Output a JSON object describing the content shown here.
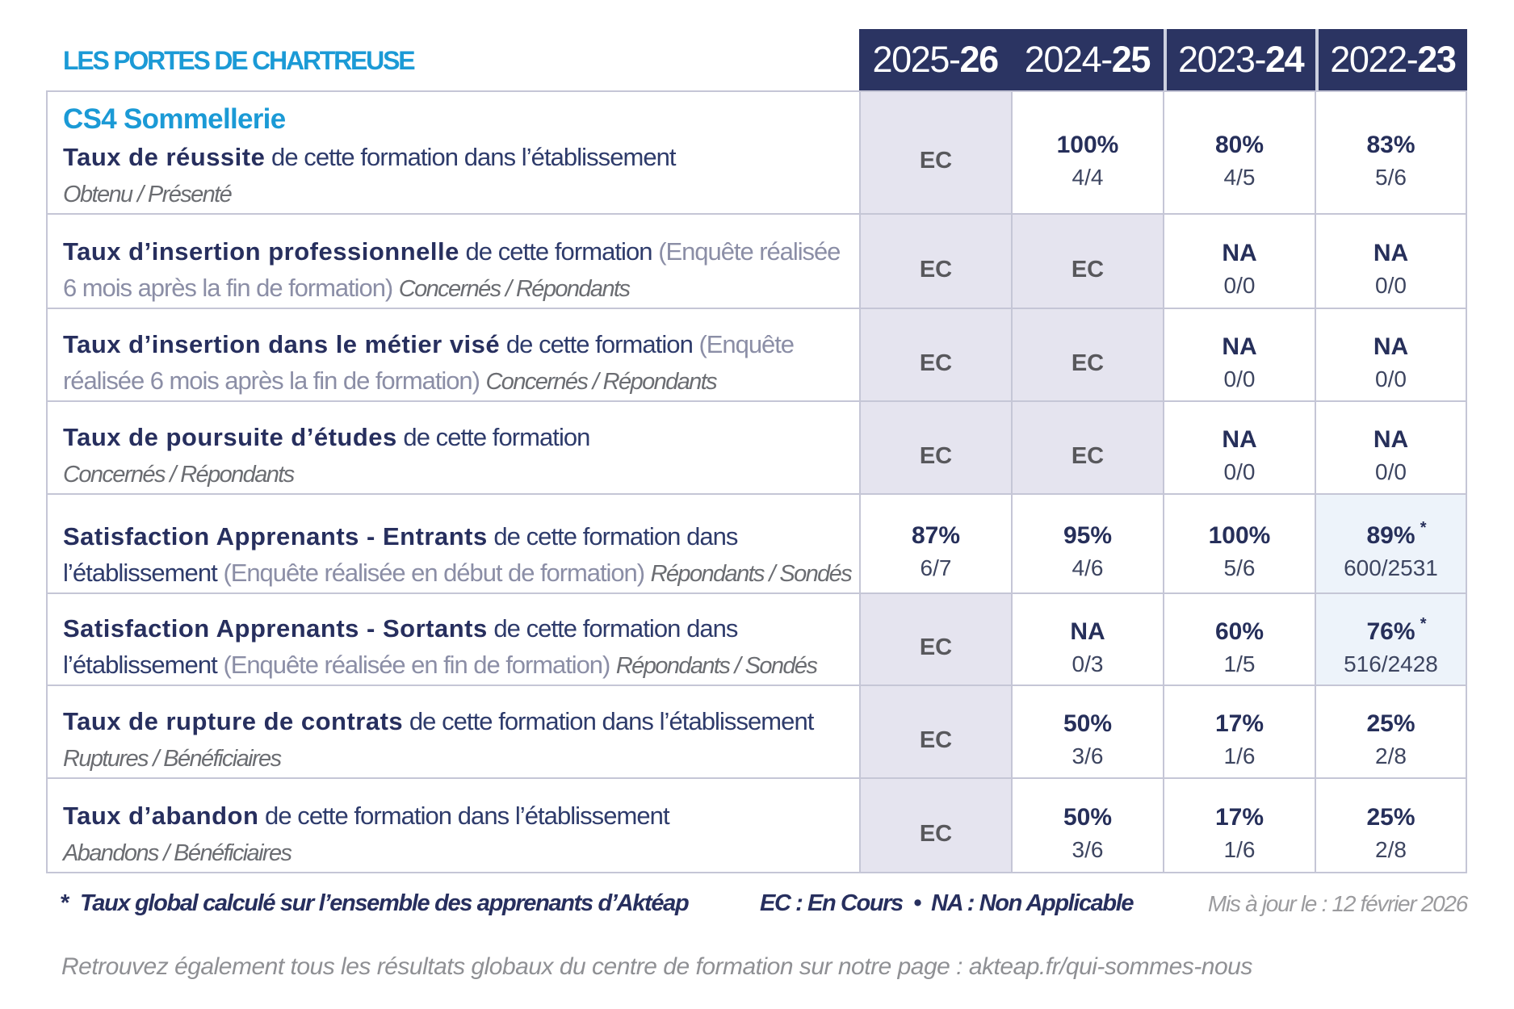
{
  "title": "LES PORTES DE CHARTREUSE",
  "colors": {
    "accent_blue": "#1b9ad6",
    "header_navy": "#2b3462",
    "text_navy": "#272f5e",
    "cell_lavender": "#e5e4ef",
    "cell_light_blue": "#edf3fa",
    "grid_border": "#c5c6d6"
  },
  "header": {
    "cols": [
      {
        "id": "2025-26",
        "pre": "2025-",
        "bold": "26"
      },
      {
        "id": "2024-25",
        "pre": "2024-",
        "bold": "25"
      },
      {
        "id": "2023-24",
        "pre": "2023-",
        "bold": "24"
      },
      {
        "id": "2022-23",
        "pre": "2022-",
        "bold": "23"
      }
    ]
  },
  "table": {
    "rows": [
      {
        "id": "taux-de-reussite",
        "heading": "CS4 Sommellerie",
        "lines": [
          [
            {
              "s": "b",
              "t": "Taux de réussite"
            },
            {
              "s": "r",
              "t": " de cette formation dans l’établissement"
            }
          ],
          [
            {
              "s": "i",
              "t": "Obtenu / Présenté"
            }
          ]
        ],
        "cells": [
          {
            "bg": "lavender",
            "value": "EC"
          },
          {
            "bg": "white",
            "value": "100%",
            "sub": "4/4"
          },
          {
            "bg": "white",
            "value": "80%",
            "sub": "4/5"
          },
          {
            "bg": "white",
            "value": "83%",
            "sub": "5/6"
          }
        ]
      },
      {
        "id": "taux-insertion-professionnelle",
        "lines": [
          [
            {
              "s": "b",
              "t": "Taux d’insertion professionnelle"
            },
            {
              "s": "r",
              "t": " de cette formation "
            },
            {
              "s": "p",
              "t": "(Enquête réalisée"
            }
          ],
          [
            {
              "s": "p",
              "t": "6 mois après la fin de formation) "
            },
            {
              "s": "i",
              "t": "Concernés / Répondants"
            }
          ]
        ],
        "cells": [
          {
            "bg": "lavender",
            "value": "EC"
          },
          {
            "bg": "lavender",
            "value": "EC"
          },
          {
            "bg": "white",
            "value": "NA",
            "sub": "0/0"
          },
          {
            "bg": "white",
            "value": "NA",
            "sub": "0/0"
          }
        ]
      },
      {
        "id": "taux-insertion-metier-vise",
        "lines": [
          [
            {
              "s": "b",
              "t": "Taux d’insertion dans le métier visé"
            },
            {
              "s": "r",
              "t": " de cette formation "
            },
            {
              "s": "p",
              "t": "(Enquête"
            }
          ],
          [
            {
              "s": "p",
              "t": "réalisée 6 mois après la fin de formation) "
            },
            {
              "s": "i",
              "t": "Concernés / Répondants"
            }
          ]
        ],
        "cells": [
          {
            "bg": "lavender",
            "value": "EC"
          },
          {
            "bg": "lavender",
            "value": "EC"
          },
          {
            "bg": "white",
            "value": "NA",
            "sub": "0/0"
          },
          {
            "bg": "white",
            "value": "NA",
            "sub": "0/0"
          }
        ]
      },
      {
        "id": "taux-poursuite-etudes",
        "lines": [
          [
            {
              "s": "b",
              "t": "Taux de poursuite d’études"
            },
            {
              "s": "r",
              "t": " de cette formation"
            }
          ],
          [
            {
              "s": "i",
              "t": "Concernés / Répondants"
            }
          ]
        ],
        "cells": [
          {
            "bg": "lavender",
            "value": "EC"
          },
          {
            "bg": "lavender",
            "value": "EC"
          },
          {
            "bg": "white",
            "value": "NA",
            "sub": "0/0"
          },
          {
            "bg": "white",
            "value": "NA",
            "sub": "0/0"
          }
        ]
      },
      {
        "id": "satisfaction-apprenants-entrants",
        "lines": [
          [
            {
              "s": "b",
              "t": "Satisfaction Apprenants - Entrants"
            },
            {
              "s": "r",
              "t": " de cette formation dans"
            }
          ],
          [
            {
              "s": "r",
              "t": "l’établissement "
            },
            {
              "s": "p",
              "t": "(Enquête réalisée en début de formation) "
            },
            {
              "s": "i",
              "t": "Répondants / Sondés"
            }
          ]
        ],
        "cells": [
          {
            "bg": "white",
            "value": "87%",
            "sub": "6/7"
          },
          {
            "bg": "white",
            "value": "95%",
            "sub": "4/6"
          },
          {
            "bg": "white",
            "value": "100%",
            "sub": "5/6"
          },
          {
            "bg": "blue",
            "value": "89%",
            "star": "*",
            "sub": "600/2531"
          }
        ]
      },
      {
        "id": "satisfaction-apprenants-sortants",
        "lines": [
          [
            {
              "s": "b",
              "t": "Satisfaction Apprenants - Sortants"
            },
            {
              "s": "r",
              "t": " de cette formation dans"
            }
          ],
          [
            {
              "s": "r",
              "t": "l’établissement "
            },
            {
              "s": "p",
              "t": "(Enquête réalisée en fin de formation) "
            },
            {
              "s": "i",
              "t": "Répondants / Sondés"
            }
          ]
        ],
        "cells": [
          {
            "bg": "lavender",
            "value": "EC"
          },
          {
            "bg": "white",
            "value": "NA",
            "sub": "0/3"
          },
          {
            "bg": "white",
            "value": "60%",
            "sub": "1/5"
          },
          {
            "bg": "blue",
            "value": "76%",
            "star": "*",
            "sub": "516/2428"
          }
        ]
      },
      {
        "id": "taux-rupture-contrats",
        "lines": [
          [
            {
              "s": "b",
              "t": "Taux de rupture de contrats"
            },
            {
              "s": "r",
              "t": " de cette formation dans l’établissement"
            }
          ],
          [
            {
              "s": "i",
              "t": "Ruptures / Bénéficiaires"
            }
          ]
        ],
        "cells": [
          {
            "bg": "lavender",
            "value": "EC"
          },
          {
            "bg": "white",
            "value": "50%",
            "sub": "3/6"
          },
          {
            "bg": "white",
            "value": "17%",
            "sub": "1/6"
          },
          {
            "bg": "white",
            "value": "25%",
            "sub": "2/8"
          }
        ]
      },
      {
        "id": "taux-abandon",
        "lines": [
          [
            {
              "s": "b",
              "t": "Taux d’abandon"
            },
            {
              "s": "r",
              "t": " de cette formation dans l’établissement"
            }
          ],
          [
            {
              "s": "i",
              "t": "Abandons / Bénéficiaires"
            }
          ]
        ],
        "cells": [
          {
            "bg": "lavender",
            "value": "EC"
          },
          {
            "bg": "white",
            "value": "50%",
            "sub": "3/6"
          },
          {
            "bg": "white",
            "value": "17%",
            "sub": "1/6"
          },
          {
            "bg": "white",
            "value": "25%",
            "sub": "2/8"
          }
        ]
      }
    ]
  },
  "footer": {
    "note_marker": "*",
    "note": "Taux global calculé sur l’ensemble des apprenants d’Aktéap",
    "legend": "EC : En Cours  •  NA : Non Applicable",
    "updated": "Mis à jour le : 12 février 2026",
    "bottom_note": "Retrouvez également tous les résultats globaux du centre de formation sur notre page : akteap.fr/qui-sommes-nous"
  }
}
